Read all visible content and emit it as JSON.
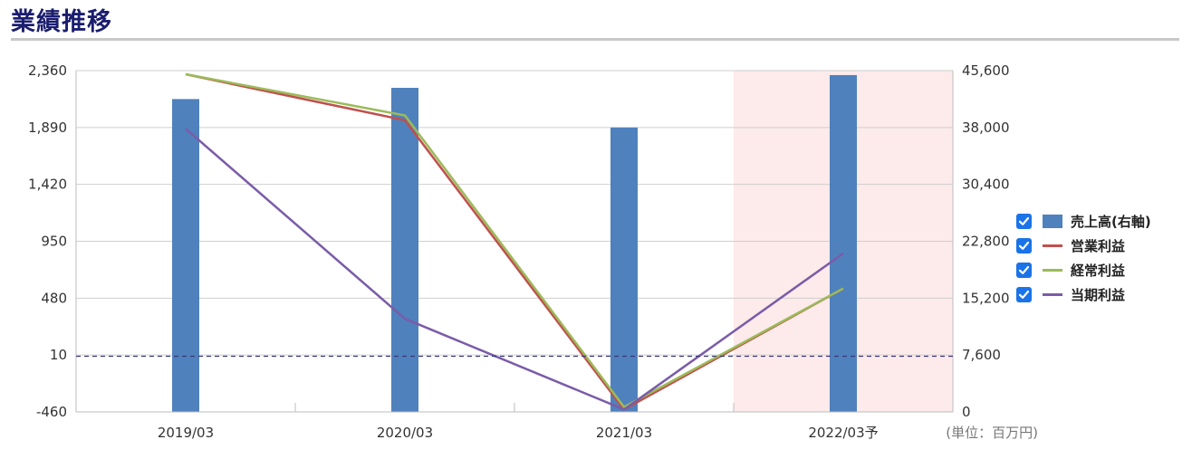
{
  "page_title": "業績推移",
  "colors": {
    "title": "#1b1d6e",
    "bar": "#4f81bd",
    "operating_profit": "#c0504d",
    "ordinary_profit": "#9bbb59",
    "net_profit": "#7a5ca8",
    "forecast_band": "#fdeaea",
    "zero_line": "#3a3a7a",
    "checkbox": "#1a73e8"
  },
  "chart_data": {
    "type": "bar",
    "categories": [
      "2019/03",
      "2020/03",
      "2021/03",
      "2022/03予"
    ],
    "forecast_category": "2022/03予",
    "left_axis": {
      "ticks": [
        "2,360",
        "1,890",
        "1,420",
        "950",
        "480",
        "10",
        "-460"
      ],
      "ylim": [
        -460,
        2360
      ],
      "reference_line": 0
    },
    "right_axis": {
      "ticks": [
        "45,600",
        "38,000",
        "30,400",
        "22,800",
        "15,200",
        "7,600",
        "0"
      ],
      "ylim": [
        0,
        45600
      ]
    },
    "series": [
      {
        "name": "売上高(右軸)",
        "kind": "bar",
        "axis": "right",
        "values": [
          41800,
          43300,
          38000,
          45000
        ]
      },
      {
        "name": "営業利益",
        "kind": "line",
        "axis": "left",
        "values": [
          2330,
          1950,
          -440,
          560
        ]
      },
      {
        "name": "経常利益",
        "kind": "line",
        "axis": "left",
        "values": [
          2330,
          1990,
          -420,
          560
        ]
      },
      {
        "name": "当期利益",
        "kind": "line",
        "axis": "left",
        "values": [
          1880,
          310,
          -440,
          850
        ]
      }
    ],
    "unit_label": "(単位：百万円)",
    "grid": true,
    "legend_position": "right"
  }
}
